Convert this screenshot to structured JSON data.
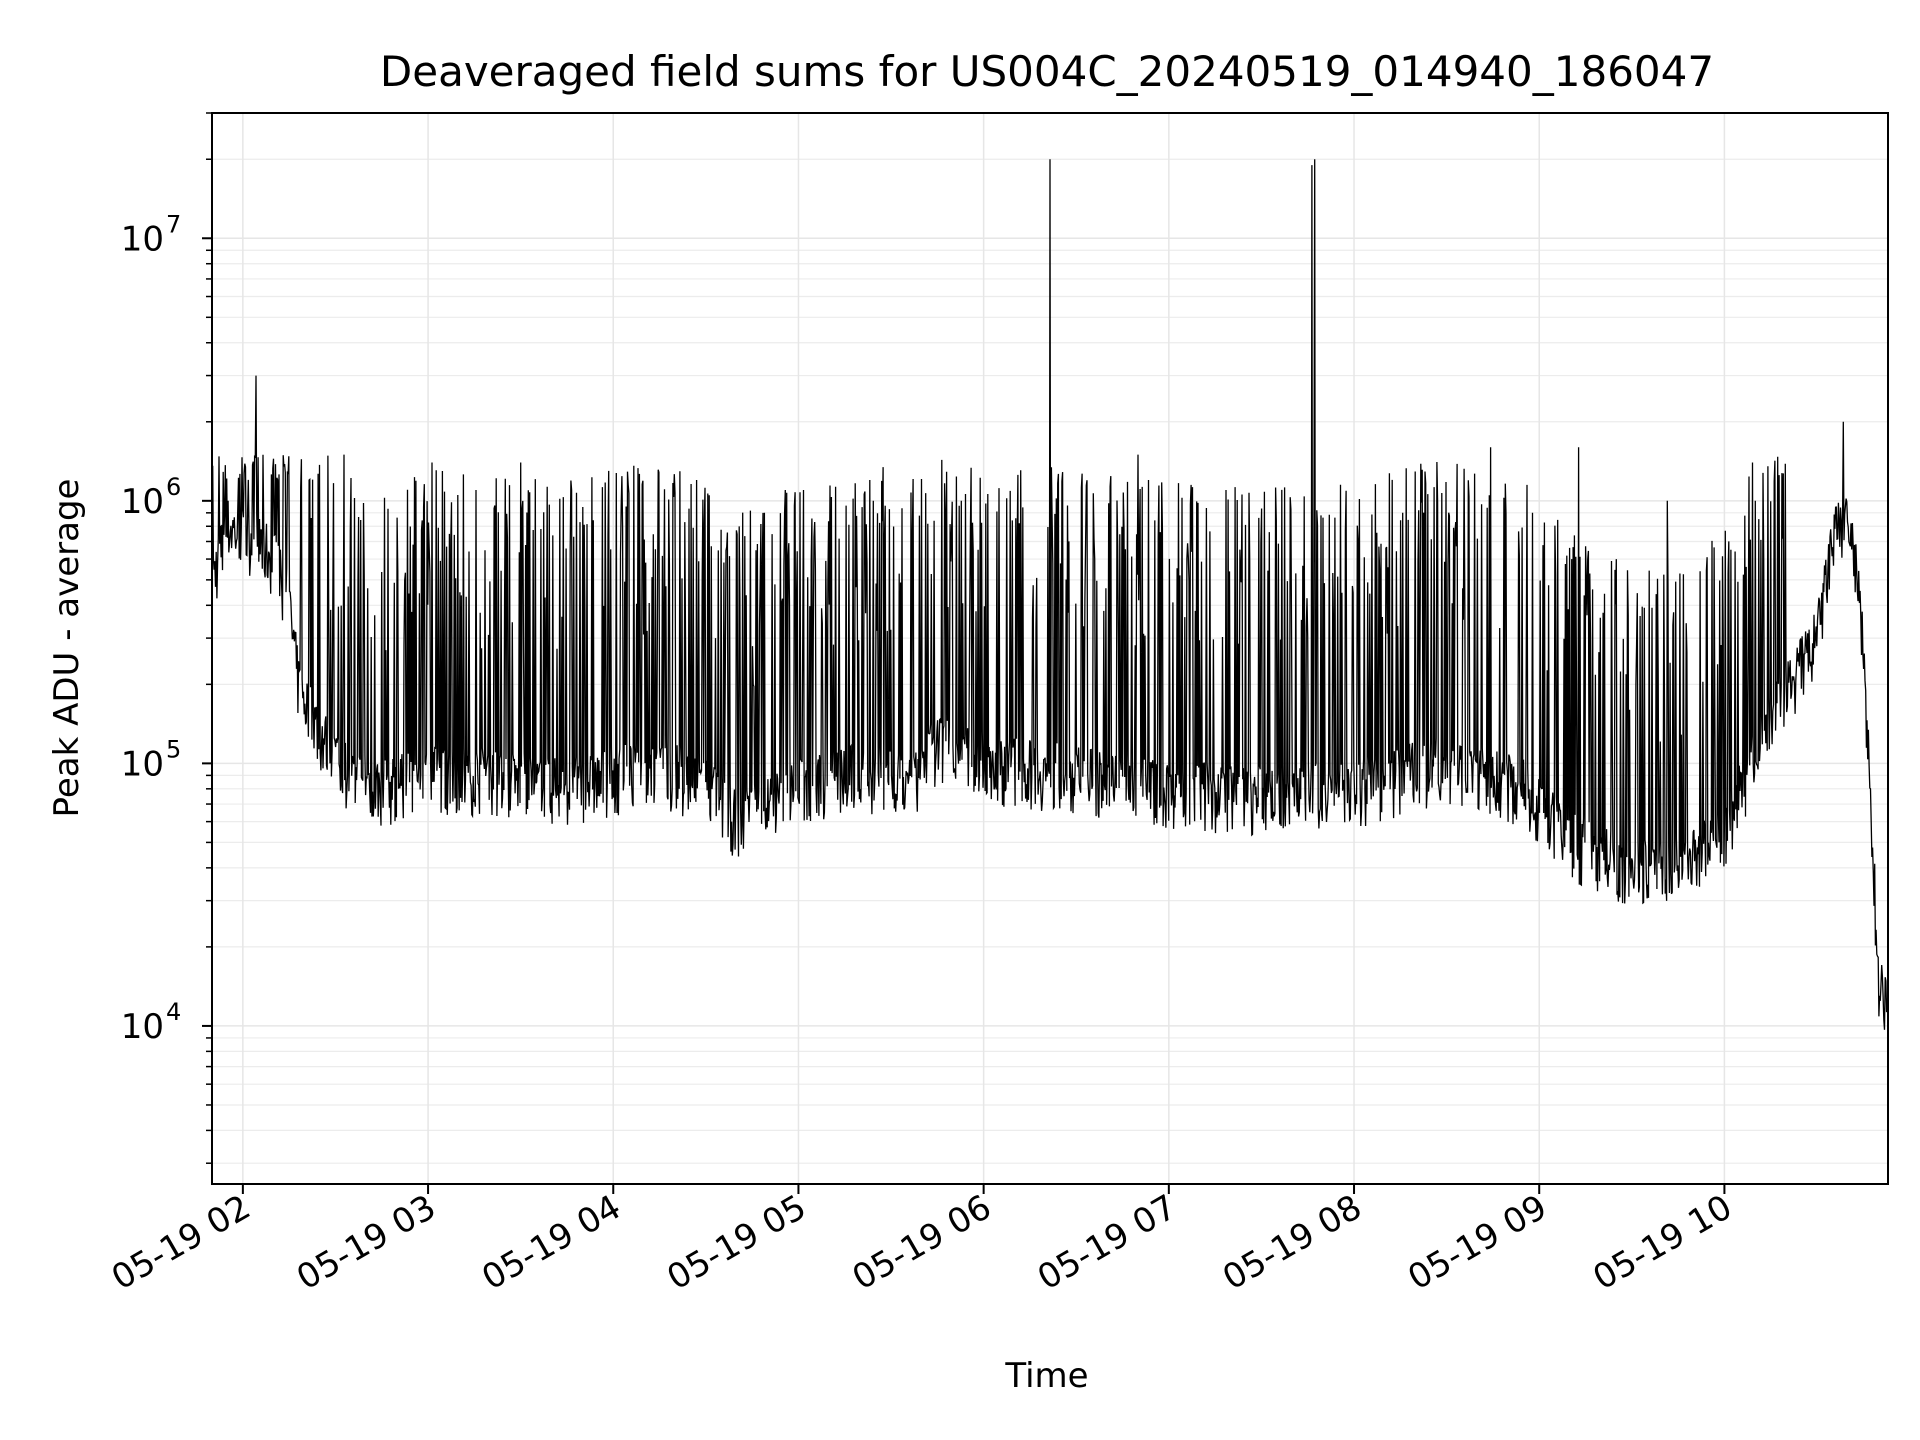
{
  "chart_data": {
    "type": "line",
    "title": "Deaveraged field sums for US004C_20240519_014940_186047",
    "xlabel": "Time",
    "ylabel": "Peak ADU - average",
    "yscale": "log",
    "ylim": [
      2500,
      30000000
    ],
    "xlim": [
      "2024-05-19 01:50",
      "2024-05-19 10:53"
    ],
    "grid": true,
    "line_color": "#000000",
    "x_tick_labels": [
      "05-19 02",
      "05-19 03",
      "05-19 04",
      "05-19 05",
      "05-19 06",
      "05-19 07",
      "05-19 08",
      "05-19 09",
      "05-19 10"
    ],
    "x_ticks": [
      "2024-05-19 02:00",
      "2024-05-19 03:00",
      "2024-05-19 04:00",
      "2024-05-19 05:00",
      "2024-05-19 06:00",
      "2024-05-19 07:00",
      "2024-05-19 08:00",
      "2024-05-19 09:00",
      "2024-05-19 10:00"
    ],
    "y_tick_labels": [
      {
        "base": "10",
        "exp": "4",
        "value": 10000
      },
      {
        "base": "10",
        "exp": "5",
        "value": 100000
      },
      {
        "base": "10",
        "exp": "6",
        "value": 1000000
      },
      {
        "base": "10",
        "exp": "7",
        "value": 10000000
      }
    ],
    "series": [
      {
        "x": [
          "2024-05-19 01:50",
          "2024-05-19 01:55",
          "2024-05-19 02:00",
          "2024-05-19 02:05",
          "2024-05-19 02:10",
          "2024-05-19 02:15",
          "2024-05-19 02:18",
          "2024-05-19 02:25",
          "2024-05-19 02:35",
          "2024-05-19 02:45",
          "2024-05-19 03:00",
          "2024-05-19 03:15",
          "2024-05-19 03:30",
          "2024-05-19 03:45",
          "2024-05-19 04:00",
          "2024-05-19 04:15",
          "2024-05-19 04:30",
          "2024-05-19 04:40",
          "2024-05-19 04:50",
          "2024-05-19 05:00",
          "2024-05-19 05:15",
          "2024-05-19 05:30",
          "2024-05-19 05:36",
          "2024-05-19 05:45",
          "2024-05-19 06:00",
          "2024-05-19 06:30",
          "2024-05-19 07:00",
          "2024-05-19 07:30",
          "2024-05-19 08:00",
          "2024-05-19 08:30",
          "2024-05-19 08:55",
          "2024-05-19 09:10",
          "2024-05-19 09:30",
          "2024-05-19 09:45",
          "2024-05-19 10:00",
          "2024-05-19 10:15",
          "2024-05-19 10:30",
          "2024-05-19 10:35",
          "2024-05-19 10:40",
          "2024-05-19 10:44",
          "2024-05-19 10:47",
          "2024-05-19 10:50",
          "2024-05-19 10:53"
        ],
        "values": [
          500000,
          800000,
          750000,
          700000,
          600000,
          400000,
          200000,
          130000,
          90000,
          80000,
          90000,
          90000,
          85000,
          80000,
          90000,
          95000,
          85000,
          60000,
          70000,
          80000,
          90000,
          90000,
          80000,
          120000,
          100000,
          90000,
          80000,
          75000,
          80000,
          100000,
          80000,
          50000,
          40000,
          40000,
          55000,
          150000,
          300000,
          700000,
          900000,
          400000,
          90000,
          15000,
          13000
        ],
        "peaks": [
          3000000,
          1500000,
          1400000,
          1400000,
          1300000,
          1200000,
          1100000,
          1000000,
          1000000,
          20000000,
          1500000,
          1100000,
          1000000,
          900000,
          1600000,
          1600000,
          1000000,
          1000000,
          2000000
        ]
      }
    ]
  }
}
